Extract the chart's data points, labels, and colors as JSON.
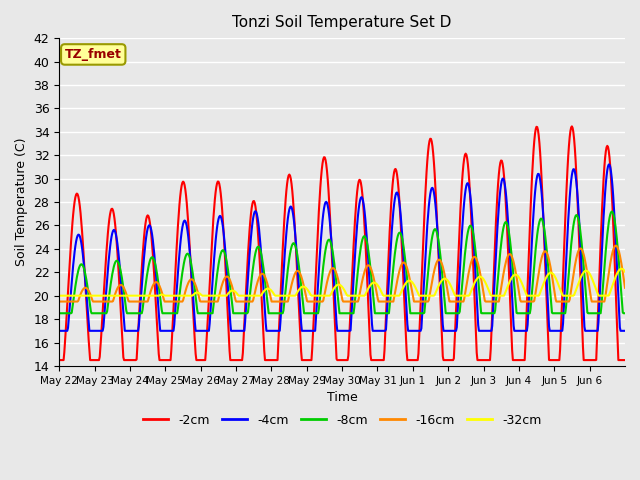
{
  "title": "Tonzi Soil Temperature Set D",
  "xlabel": "Time",
  "ylabel": "Soil Temperature (C)",
  "ylim": [
    14,
    42
  ],
  "yticks": [
    14,
    16,
    18,
    20,
    22,
    24,
    26,
    28,
    30,
    32,
    34,
    36,
    38,
    40,
    42
  ],
  "plot_bg_color": "#e8e8e8",
  "grid_color": "#ffffff",
  "legend_label": "TZ_fmet",
  "legend_box_color": "#ffff99",
  "legend_box_edge": "#999900",
  "legend_text_color": "#990000",
  "series": [
    {
      "label": "-2cm",
      "color": "#ff0000",
      "lw": 1.5
    },
    {
      "label": "-4cm",
      "color": "#0000ff",
      "lw": 1.5
    },
    {
      "label": "-8cm",
      "color": "#00cc00",
      "lw": 1.5
    },
    {
      "label": "-16cm",
      "color": "#ff8800",
      "lw": 1.5
    },
    {
      "label": "-32cm",
      "color": "#ffff00",
      "lw": 1.5
    }
  ],
  "x_tick_labels": [
    "May 22",
    "May 23",
    "May 24",
    "May 25",
    "May 26",
    "May 27",
    "May 28",
    "May 29",
    "May 30",
    "May 31",
    "Jun 1",
    "Jun 2",
    "Jun 3",
    "Jun 4",
    "Jun 5",
    "Jun 6"
  ],
  "n_days": 16
}
